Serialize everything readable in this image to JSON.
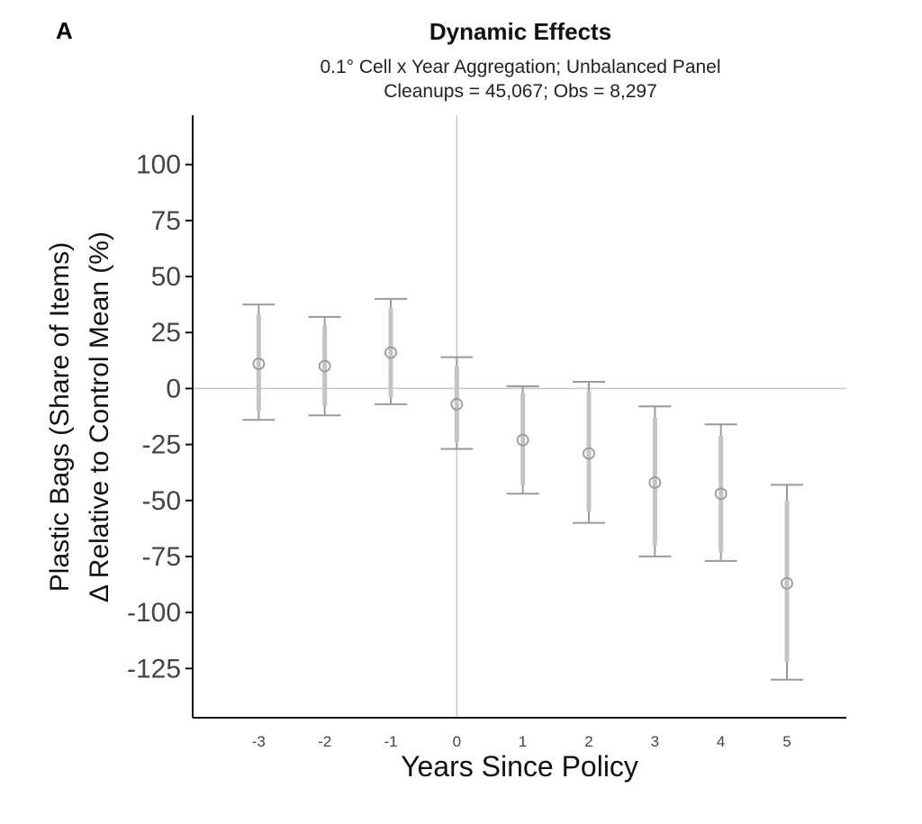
{
  "panel_label": "A",
  "chart_data": {
    "type": "scatter",
    "title": "Dynamic Effects",
    "subtitle_lines": [
      "0.1° Cell x Year Aggregation; Unbalanced Panel",
      "Cleanups = 45,067; Obs = 8,297"
    ],
    "xlabel": "Years Since Policy",
    "ylabel_lines": [
      "Plastic Bags (Share of Items)",
      "Δ Relative to Control Mean (%)"
    ],
    "x_ticks": [
      -3,
      -2,
      -1,
      0,
      1,
      2,
      3,
      4,
      5
    ],
    "y_ticks": [
      100,
      75,
      50,
      25,
      0,
      -25,
      -50,
      -75,
      -100,
      -125
    ],
    "ylim": [
      -147,
      122
    ],
    "xlim": [
      -4,
      5.9
    ],
    "reference_lines": {
      "x": 0,
      "y": 0
    },
    "points": [
      {
        "x": -3,
        "y": 11,
        "ci95": [
          -14,
          37.5
        ],
        "ci90": [
          -10,
          33
        ]
      },
      {
        "x": -2,
        "y": 10,
        "ci95": [
          -12,
          32
        ],
        "ci90": [
          -8,
          28
        ]
      },
      {
        "x": -1,
        "y": 16,
        "ci95": [
          -7,
          40
        ],
        "ci90": [
          -4,
          36
        ]
      },
      {
        "x": 0,
        "y": -7,
        "ci95": [
          -27,
          14
        ],
        "ci90": [
          -24,
          10
        ]
      },
      {
        "x": 1,
        "y": -23,
        "ci95": [
          -47,
          1
        ],
        "ci90": [
          -43,
          -2
        ]
      },
      {
        "x": 2,
        "y": -29,
        "ci95": [
          -60,
          3
        ],
        "ci90": [
          -55,
          -1
        ]
      },
      {
        "x": 3,
        "y": -42,
        "ci95": [
          -75,
          -8
        ],
        "ci90": [
          -70,
          -13
        ]
      },
      {
        "x": 4,
        "y": -47,
        "ci95": [
          -77,
          -16
        ],
        "ci90": [
          -73,
          -21
        ]
      },
      {
        "x": 5,
        "y": -87,
        "ci95": [
          -130,
          -43
        ],
        "ci90": [
          -122,
          -50
        ]
      }
    ],
    "colors": {
      "error_bar": "#9a9a9a",
      "inner_bar": "#c4c4c4",
      "point": "#9a9a9a",
      "ref_line": "#c8c8c8",
      "axis": "#111111"
    }
  }
}
